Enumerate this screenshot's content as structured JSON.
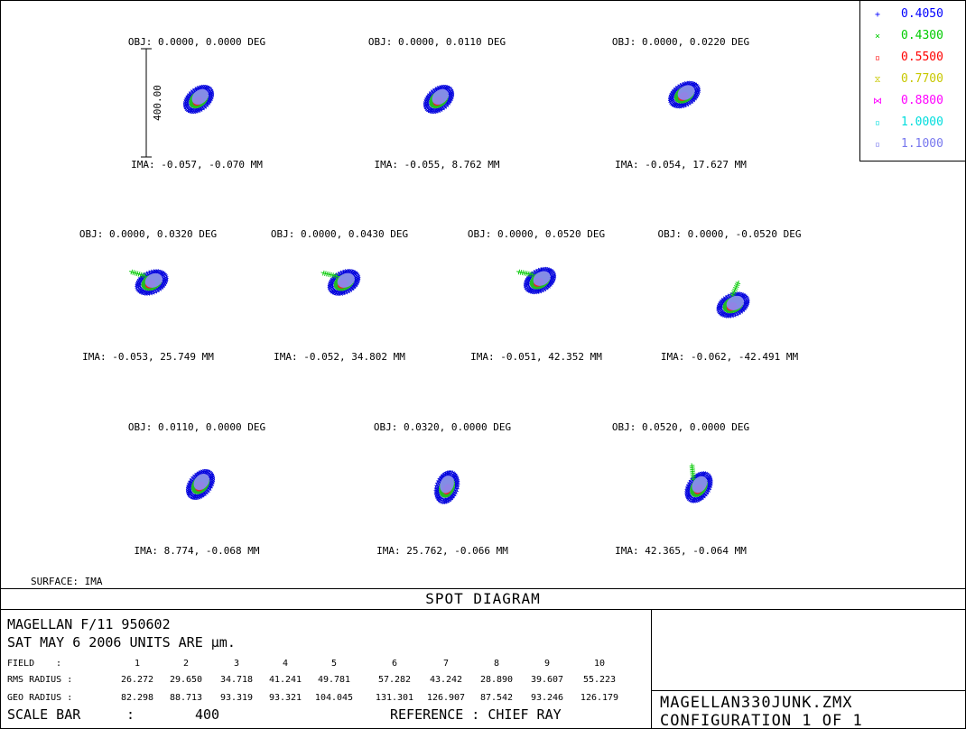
{
  "legend": [
    {
      "marker": "+",
      "label": "0.4050",
      "color": "#0000ff"
    },
    {
      "marker": "×",
      "label": "0.4300",
      "color": "#00cc00"
    },
    {
      "marker": "▫",
      "label": "0.5500",
      "color": "#ff0000"
    },
    {
      "marker": "⧖",
      "label": "0.7700",
      "color": "#c8c800"
    },
    {
      "marker": "⋈",
      "label": "0.8800",
      "color": "#ff00ff"
    },
    {
      "marker": "▫",
      "label": "1.0000",
      "color": "#00dddd"
    },
    {
      "marker": "▫",
      "label": "1.1000",
      "color": "#7777ee"
    }
  ],
  "scale_label": "400.00",
  "fields": [
    {
      "obj": "OBJ: 0.0000, 0.0000 DEG",
      "ima": "IMA: -0.057, -0.070 MM"
    },
    {
      "obj": "OBJ: 0.0000, 0.0110 DEG",
      "ima": "IMA: -0.055, 8.762 MM"
    },
    {
      "obj": "OBJ: 0.0000, 0.0220 DEG",
      "ima": "IMA: -0.054, 17.627 MM"
    },
    {
      "obj": "OBJ: 0.0000, 0.0320 DEG",
      "ima": "IMA: -0.053, 25.749 MM"
    },
    {
      "obj": "OBJ: 0.0000, 0.0430 DEG",
      "ima": "IMA: -0.052, 34.802 MM"
    },
    {
      "obj": "OBJ: 0.0000, 0.0520 DEG",
      "ima": "IMA: -0.051, 42.352 MM"
    },
    {
      "obj": "OBJ: 0.0000, -0.0520 DEG",
      "ima": "IMA: -0.062, -42.491 MM"
    },
    {
      "obj": "OBJ: 0.0110, 0.0000 DEG",
      "ima": "IMA: 8.774, -0.068 MM"
    },
    {
      "obj": "OBJ: 0.0320, 0.0000 DEG",
      "ima": "IMA: 25.762, -0.066 MM"
    },
    {
      "obj": "OBJ: 0.0520, 0.0000 DEG",
      "ima": "IMA: 42.365, -0.064 MM"
    }
  ],
  "surface_label": "SURFACE: IMA",
  "title": "SPOT DIAGRAM",
  "info": {
    "line1": "MAGELLAN F/11 950602",
    "line2": "SAT MAY 6 2006   UNITS ARE µm.",
    "field_label": "FIELD",
    "rms_label": "RMS RADIUS :",
    "geo_label": "GEO RADIUS :",
    "colon": ":",
    "field_numbers": [
      "1",
      "2",
      "3",
      "4",
      "5",
      "6",
      "7",
      "8",
      "9",
      "10"
    ],
    "rms_values": [
      "26.272",
      "29.650",
      "34.718",
      "41.241",
      "49.781",
      "57.282",
      "43.242",
      "28.890",
      "39.607",
      "55.223"
    ],
    "geo_values": [
      "82.298",
      "88.713",
      "93.319",
      "93.321",
      "104.045",
      "131.301",
      "126.907",
      "87.542",
      "93.246",
      "126.179"
    ],
    "scale_bar_label": "SCALE BAR",
    "scale_bar_sep": ":",
    "scale_bar_value": "400",
    "reference": "REFERENCE   :  CHIEF RAY"
  },
  "file": {
    "name": "MAGELLAN330JUNK.ZMX",
    "config": "CONFIGURATION  1  OF  1"
  }
}
